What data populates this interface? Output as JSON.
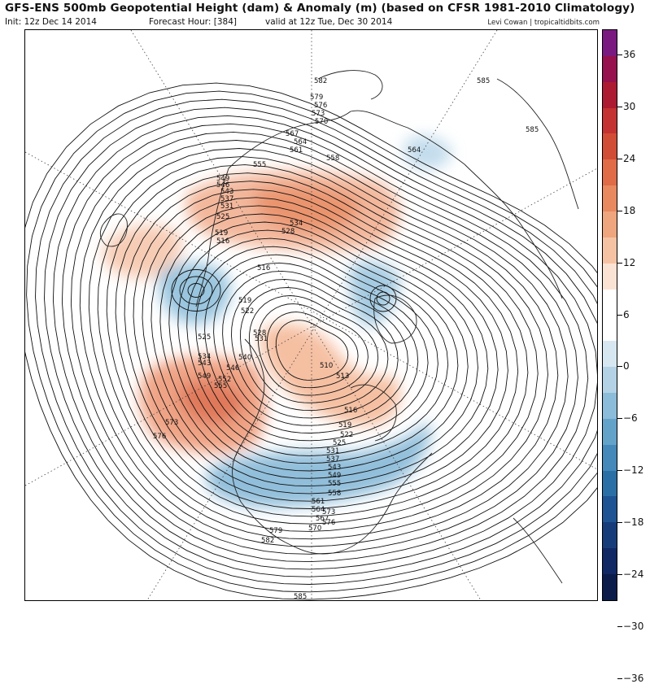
{
  "header": {
    "title": "GFS-ENS 500mb Geopotential Height (dam) & Anomaly (m) (based on CFSR 1981-2010 Climatology)",
    "init": "Init: 12z Dec 14 2014",
    "forecast_hour": "Forecast Hour: [384]",
    "valid": "valid at 12z Tue, Dec 30 2014",
    "credit": "Levi Cowan | tropicaltidbits.com"
  },
  "colorbar": {
    "colors": [
      "#7a1a80",
      "#96114d",
      "#ad1b32",
      "#c43232",
      "#d24d35",
      "#df6b47",
      "#e8895f",
      "#efa57d",
      "#f5c3a4",
      "#fbe3d3",
      "#ffffff",
      "#ffffff",
      "#d7e7f1",
      "#b3d2e6",
      "#8bbcd9",
      "#64a3c9",
      "#4489ba",
      "#2b6fa7",
      "#1e5493",
      "#173c7a",
      "#102863",
      "#0b1c4a"
    ],
    "ticks": [
      36,
      30,
      24,
      18,
      12,
      6,
      0,
      -6,
      -12,
      -18,
      -24,
      -30,
      -36
    ]
  },
  "contour_labels": [
    {
      "text": "585"
    },
    {
      "text": "582"
    },
    {
      "text": "579"
    },
    {
      "text": "576"
    },
    {
      "text": "573"
    },
    {
      "text": "570"
    },
    {
      "text": "567"
    },
    {
      "text": "564"
    },
    {
      "text": "561"
    },
    {
      "text": "558"
    },
    {
      "text": "564"
    },
    {
      "text": "585"
    },
    {
      "text": "555"
    },
    {
      "text": "549"
    },
    {
      "text": "546"
    },
    {
      "text": "543"
    },
    {
      "text": "537"
    },
    {
      "text": "531"
    },
    {
      "text": "525"
    },
    {
      "text": "534"
    },
    {
      "text": "528"
    },
    {
      "text": "519"
    },
    {
      "text": "516"
    },
    {
      "text": "516"
    },
    {
      "text": "519"
    },
    {
      "text": "522"
    },
    {
      "text": "528"
    },
    {
      "text": "531"
    },
    {
      "text": "525"
    },
    {
      "text": "534"
    },
    {
      "text": "540"
    },
    {
      "text": "543"
    },
    {
      "text": "546"
    },
    {
      "text": "549"
    },
    {
      "text": "552"
    },
    {
      "text": "555"
    },
    {
      "text": "510"
    },
    {
      "text": "513"
    },
    {
      "text": "516"
    },
    {
      "text": "519"
    },
    {
      "text": "522"
    },
    {
      "text": "525"
    },
    {
      "text": "531"
    },
    {
      "text": "537"
    },
    {
      "text": "543"
    },
    {
      "text": "549"
    },
    {
      "text": "555"
    },
    {
      "text": "558"
    },
    {
      "text": "561"
    },
    {
      "text": "564"
    },
    {
      "text": "567"
    },
    {
      "text": "570"
    },
    {
      "text": "573"
    },
    {
      "text": "576"
    },
    {
      "text": "573"
    },
    {
      "text": "576"
    },
    {
      "text": "579"
    },
    {
      "text": "582"
    },
    {
      "text": "585"
    }
  ]
}
